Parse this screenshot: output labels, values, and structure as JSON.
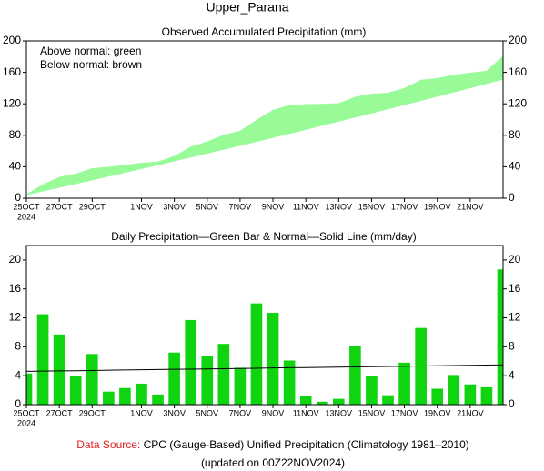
{
  "title": "Upper_Parana",
  "chart_data": [
    {
      "type": "line",
      "title": "Observed Accumulated Precipitation (mm)",
      "notes": [
        "Above normal: green",
        "Below normal: brown"
      ],
      "categories": [
        "25OCT",
        null,
        "27OCT",
        null,
        "29OCT",
        null,
        null,
        "1NOV",
        null,
        "3NOV",
        null,
        "5NOV",
        null,
        "7NOV",
        null,
        "9NOV",
        null,
        "11NOV",
        null,
        "13NOV",
        null,
        "15NOV",
        null,
        "17NOV",
        null,
        "19NOV",
        null,
        "21NOV",
        null,
        null
      ],
      "year": "2024",
      "series": [
        {
          "values": [
            4.3,
            16.8,
            26.5,
            30.5,
            37.5,
            39.3,
            41.6,
            44.5,
            45.9,
            53.1,
            64.8,
            71.5,
            79.9,
            85.0,
            99.0,
            111.7,
            117.8,
            119.0,
            119.4,
            120.2,
            128.3,
            132.2,
            133.5,
            139.3,
            149.9,
            152.1,
            156.2,
            159.0,
            161.4,
            180.1
          ]
        },
        {
          "values": [
            4.6,
            9.2,
            13.9,
            18.6,
            23.3,
            28.1,
            32.9,
            37.7,
            42.5,
            47.4,
            52.3,
            57.3,
            62.2,
            67.2,
            72.3,
            77.3,
            82.4,
            87.5,
            92.7,
            97.9,
            103.1,
            108.4,
            113.7,
            119.0,
            124.3,
            129.7,
            135.1,
            140.5,
            146.0,
            151.5
          ]
        }
      ],
      "above_color": "#98fb98",
      "below_color": "#a0522d",
      "ylim": [
        0,
        200
      ],
      "yticks": [
        0,
        40,
        80,
        120,
        160,
        200
      ]
    },
    {
      "type": "bar",
      "title": "Daily Precipitation—Green Bar & Normal—Solid Line (mm/day)",
      "categories": [
        "25OCT",
        null,
        "27OCT",
        null,
        "29OCT",
        null,
        null,
        "1NOV",
        null,
        "3NOV",
        null,
        "5NOV",
        null,
        "7NOV",
        null,
        "9NOV",
        null,
        "11NOV",
        null,
        "13NOV",
        null,
        "15NOV",
        null,
        "17NOV",
        null,
        "19NOV",
        null,
        "21NOV",
        null,
        null
      ],
      "year": "2024",
      "series": [
        {
          "color": "#11d411",
          "values": [
            4.3,
            12.5,
            9.7,
            4.0,
            7.0,
            1.8,
            2.3,
            2.9,
            1.4,
            7.2,
            11.7,
            6.7,
            8.4,
            5.1,
            14.0,
            12.7,
            6.1,
            1.2,
            0.4,
            0.8,
            8.1,
            3.9,
            1.3,
            5.8,
            10.6,
            2.2,
            4.1,
            2.8,
            2.4,
            18.7
          ]
        },
        {
          "color": "#000000",
          "values": [
            4.6,
            4.63,
            4.66,
            4.69,
            4.72,
            4.76,
            4.79,
            4.82,
            4.85,
            4.88,
            4.91,
            4.94,
            4.97,
            5.0,
            5.03,
            5.07,
            5.1,
            5.13,
            5.16,
            5.19,
            5.22,
            5.25,
            5.28,
            5.31,
            5.34,
            5.38,
            5.41,
            5.44,
            5.47,
            5.5
          ]
        }
      ],
      "ylim": [
        0,
        22
      ],
      "yticks": [
        0,
        4,
        8,
        12,
        16,
        20
      ]
    }
  ],
  "footer": {
    "source_label": "Data Source:",
    "source": "CPC (Gauge-Based) Unified Precipitation (Climatology 1981–2010)",
    "updated": "(updated on 00Z22NOV2024)"
  }
}
